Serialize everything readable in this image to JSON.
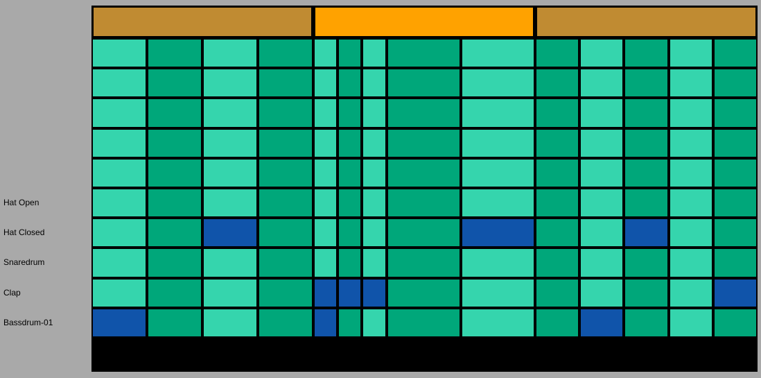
{
  "colors": {
    "header_inactive": "#c08b32",
    "header_active": "#ffa200",
    "cell_light": "#35d5ad",
    "cell_dark": "#00a77a",
    "cell_on": "#1054aa",
    "background": "#a9a9a9",
    "grid_lines": "#000000"
  },
  "headers": [
    {
      "active": false
    },
    {
      "active": true
    },
    {
      "active": false
    }
  ],
  "row_labels": [
    "",
    "",
    "",
    "",
    "",
    "Hat Open",
    "Hat Closed",
    "Snaredrum",
    "Clap",
    "Bassdrum-01"
  ],
  "grid": {
    "rows": [
      [
        false,
        false,
        false,
        false,
        false,
        false,
        false,
        false,
        false,
        false,
        false,
        false,
        false,
        false,
        false
      ],
      [
        false,
        false,
        false,
        false,
        false,
        false,
        false,
        false,
        false,
        false,
        false,
        false,
        false,
        false,
        false
      ],
      [
        false,
        false,
        false,
        false,
        false,
        false,
        false,
        false,
        false,
        false,
        false,
        false,
        false,
        false,
        false
      ],
      [
        false,
        false,
        false,
        false,
        false,
        false,
        false,
        false,
        false,
        false,
        false,
        false,
        false,
        false,
        false
      ],
      [
        false,
        false,
        false,
        false,
        false,
        false,
        false,
        false,
        false,
        false,
        false,
        false,
        false,
        false,
        false
      ],
      [
        false,
        false,
        false,
        false,
        false,
        false,
        false,
        false,
        false,
        false,
        false,
        false,
        false,
        false,
        false
      ],
      [
        false,
        false,
        true,
        false,
        false,
        false,
        false,
        false,
        true,
        false,
        false,
        true,
        false,
        false,
        false
      ],
      [
        false,
        false,
        false,
        false,
        false,
        false,
        false,
        false,
        false,
        false,
        false,
        false,
        false,
        false,
        false
      ],
      [
        false,
        false,
        false,
        false,
        true,
        true,
        true,
        false,
        false,
        false,
        false,
        false,
        false,
        true,
        false
      ],
      [
        true,
        false,
        false,
        false,
        true,
        false,
        false,
        false,
        false,
        false,
        true,
        false,
        false,
        false,
        false
      ]
    ]
  }
}
